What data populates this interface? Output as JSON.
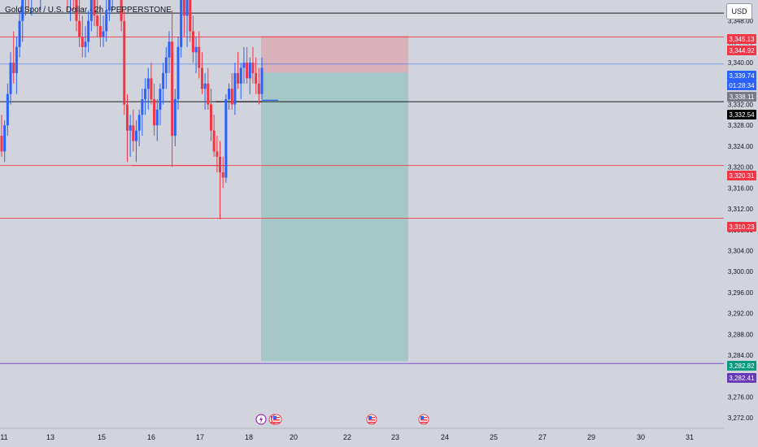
{
  "header": {
    "title": "Gold Spot / U.S. Dollar · 2h · PEPPERSTONE",
    "currency": "USD"
  },
  "chart_data": {
    "type": "candlestick",
    "y_axis": {
      "min": 3270,
      "max": 3352,
      "ticks": [
        3348.0,
        3344.0,
        3340.0,
        3336.0,
        3332.0,
        3328.0,
        3324.0,
        3320.0,
        3316.0,
        3312.0,
        3308.0,
        3304.0,
        3300.0,
        3296.0,
        3292.0,
        3288.0,
        3284.0,
        3280.0,
        3276.0,
        3272.0
      ]
    },
    "x_axis": {
      "labels": [
        "11",
        "13",
        "15",
        "16",
        "17",
        "18",
        "20",
        "22",
        "23",
        "24",
        "25",
        "27",
        "29",
        "30",
        "31"
      ]
    },
    "price_labels": [
      {
        "value": "3,345.13",
        "color": "#f23645"
      },
      {
        "value": "3,344.92",
        "color": "#f23645"
      },
      {
        "value": "3,339.74",
        "color": "#2962ff"
      },
      {
        "value": "01:28:34",
        "color": "#2962ff"
      },
      {
        "value": "3,338.11",
        "color": "#787b86"
      },
      {
        "value": "3,332.54",
        "color": "#000000"
      },
      {
        "value": "3,320.31",
        "color": "#f23645"
      },
      {
        "value": "3,310.23",
        "color": "#f23645"
      },
      {
        "value": "3,282.82",
        "color": "#089981"
      },
      {
        "value": "3,282.41",
        "color": "#673ab7"
      }
    ],
    "horizontal_lines": [
      {
        "value": 3349.5,
        "color": "#000000"
      },
      {
        "value": 3344.92,
        "color": "#f23645"
      },
      {
        "value": 3339.74,
        "color": "#2962ff"
      },
      {
        "value": 3332.54,
        "color": "#000000"
      },
      {
        "value": 3320.31,
        "color": "#f23645"
      },
      {
        "value": 3310.23,
        "color": "#f23645"
      },
      {
        "value": 3282.41,
        "color": "#673ab7"
      }
    ],
    "position": {
      "type": "short",
      "entry": 3338.11,
      "stop": 3345.13,
      "target": 3282.82
    },
    "candles": [
      {
        "o": 3326,
        "h": 3330,
        "l": 3322,
        "c": 3323
      },
      {
        "o": 3323,
        "h": 3329,
        "l": 3321,
        "c": 3328
      },
      {
        "o": 3328,
        "h": 3336,
        "l": 3326,
        "c": 3334
      },
      {
        "o": 3334,
        "h": 3342,
        "l": 3332,
        "c": 3340
      },
      {
        "o": 3340,
        "h": 3346,
        "l": 3336,
        "c": 3338
      },
      {
        "o": 3338,
        "h": 3345,
        "l": 3334,
        "c": 3343
      },
      {
        "o": 3343,
        "h": 3350,
        "l": 3341,
        "c": 3348
      },
      {
        "o": 3348,
        "h": 3354,
        "l": 3344,
        "c": 3352
      },
      {
        "o": 3352,
        "h": 3358,
        "l": 3349,
        "c": 3355
      },
      {
        "o": 3355,
        "h": 3359,
        "l": 3350,
        "c": 3353
      },
      {
        "o": 3353,
        "h": 3357,
        "l": 3349,
        "c": 3356
      },
      {
        "o": 3356,
        "h": 3360,
        "l": 3352,
        "c": 3357
      },
      {
        "o": 3357,
        "h": 3361,
        "l": 3352,
        "c": 3354
      },
      {
        "o": 3354,
        "h": 3358,
        "l": 3350,
        "c": 3357
      },
      {
        "o": 3357,
        "h": 3362,
        "l": 3353,
        "c": 3359
      },
      {
        "o": 3359,
        "h": 3363,
        "l": 3355,
        "c": 3358
      },
      {
        "o": 3358,
        "h": 3362,
        "l": 3354,
        "c": 3360
      },
      {
        "o": 3360,
        "h": 3363,
        "l": 3356,
        "c": 3357
      },
      {
        "o": 3357,
        "h": 3361,
        "l": 3353,
        "c": 3359
      },
      {
        "o": 3359,
        "h": 3362,
        "l": 3355,
        "c": 3356
      },
      {
        "o": 3356,
        "h": 3360,
        "l": 3352,
        "c": 3358
      },
      {
        "o": 3358,
        "h": 3361,
        "l": 3354,
        "c": 3355
      },
      {
        "o": 3355,
        "h": 3360,
        "l": 3350,
        "c": 3353
      },
      {
        "o": 3353,
        "h": 3357,
        "l": 3348,
        "c": 3355
      },
      {
        "o": 3355,
        "h": 3359,
        "l": 3350,
        "c": 3352
      },
      {
        "o": 3352,
        "h": 3356,
        "l": 3346,
        "c": 3348
      },
      {
        "o": 3348,
        "h": 3352,
        "l": 3343,
        "c": 3345
      },
      {
        "o": 3345,
        "h": 3349,
        "l": 3341,
        "c": 3343
      },
      {
        "o": 3343,
        "h": 3347,
        "l": 3341,
        "c": 3344
      },
      {
        "o": 3344,
        "h": 3350,
        "l": 3342,
        "c": 3348
      },
      {
        "o": 3348,
        "h": 3354,
        "l": 3346,
        "c": 3352
      },
      {
        "o": 3352,
        "h": 3356,
        "l": 3347,
        "c": 3349
      },
      {
        "o": 3349,
        "h": 3353,
        "l": 3345,
        "c": 3347
      },
      {
        "o": 3347,
        "h": 3351,
        "l": 3343,
        "c": 3345
      },
      {
        "o": 3345,
        "h": 3349,
        "l": 3343,
        "c": 3346
      },
      {
        "o": 3346,
        "h": 3352,
        "l": 3344,
        "c": 3350
      },
      {
        "o": 3350,
        "h": 3356,
        "l": 3348,
        "c": 3354
      },
      {
        "o": 3354,
        "h": 3358,
        "l": 3350,
        "c": 3356
      },
      {
        "o": 3356,
        "h": 3360,
        "l": 3352,
        "c": 3358
      },
      {
        "o": 3358,
        "h": 3362,
        "l": 3353,
        "c": 3355
      },
      {
        "o": 3355,
        "h": 3358,
        "l": 3346,
        "c": 3348
      },
      {
        "o": 3348,
        "h": 3350,
        "l": 3330,
        "c": 3332
      },
      {
        "o": 3332,
        "h": 3334,
        "l": 3321,
        "c": 3327
      },
      {
        "o": 3327,
        "h": 3330,
        "l": 3322,
        "c": 3328
      },
      {
        "o": 3328,
        "h": 3331,
        "l": 3323,
        "c": 3325
      },
      {
        "o": 3325,
        "h": 3329,
        "l": 3321,
        "c": 3327
      },
      {
        "o": 3327,
        "h": 3331,
        "l": 3324,
        "c": 3330
      },
      {
        "o": 3330,
        "h": 3335,
        "l": 3326,
        "c": 3333
      },
      {
        "o": 3333,
        "h": 3337,
        "l": 3330,
        "c": 3335
      },
      {
        "o": 3335,
        "h": 3339,
        "l": 3331,
        "c": 3337
      },
      {
        "o": 3337,
        "h": 3340,
        "l": 3332,
        "c": 3333
      },
      {
        "o": 3333,
        "h": 3336,
        "l": 3326,
        "c": 3328
      },
      {
        "o": 3328,
        "h": 3333,
        "l": 3325,
        "c": 3331
      },
      {
        "o": 3331,
        "h": 3336,
        "l": 3328,
        "c": 3335
      },
      {
        "o": 3335,
        "h": 3340,
        "l": 3332,
        "c": 3338
      },
      {
        "o": 3338,
        "h": 3343,
        "l": 3335,
        "c": 3341
      },
      {
        "o": 3341,
        "h": 3346,
        "l": 3338,
        "c": 3344
      },
      {
        "o": 3344,
        "h": 3350,
        "l": 3320,
        "c": 3326
      },
      {
        "o": 3326,
        "h": 3335,
        "l": 3324,
        "c": 3333
      },
      {
        "o": 3333,
        "h": 3345,
        "l": 3331,
        "c": 3343
      },
      {
        "o": 3343,
        "h": 3360,
        "l": 3341,
        "c": 3357
      },
      {
        "o": 3357,
        "h": 3361,
        "l": 3345,
        "c": 3349
      },
      {
        "o": 3349,
        "h": 3354,
        "l": 3343,
        "c": 3352
      },
      {
        "o": 3352,
        "h": 3355,
        "l": 3344,
        "c": 3346
      },
      {
        "o": 3346,
        "h": 3349,
        "l": 3340,
        "c": 3342
      },
      {
        "o": 3342,
        "h": 3345,
        "l": 3338,
        "c": 3343
      },
      {
        "o": 3343,
        "h": 3346,
        "l": 3337,
        "c": 3339
      },
      {
        "o": 3339,
        "h": 3342,
        "l": 3334,
        "c": 3335
      },
      {
        "o": 3335,
        "h": 3338,
        "l": 3331,
        "c": 3336
      },
      {
        "o": 3336,
        "h": 3339,
        "l": 3331,
        "c": 3332
      },
      {
        "o": 3332,
        "h": 3335,
        "l": 3325,
        "c": 3327
      },
      {
        "o": 3327,
        "h": 3330,
        "l": 3322,
        "c": 3323
      },
      {
        "o": 3323,
        "h": 3326,
        "l": 3319,
        "c": 3322
      },
      {
        "o": 3322,
        "h": 3325,
        "l": 3310,
        "c": 3319
      },
      {
        "o": 3319,
        "h": 3322,
        "l": 3316,
        "c": 3318
      },
      {
        "o": 3318,
        "h": 3334,
        "l": 3317,
        "c": 3333
      },
      {
        "o": 3333,
        "h": 3336,
        "l": 3331,
        "c": 3335
      },
      {
        "o": 3335,
        "h": 3338,
        "l": 3331,
        "c": 3332
      },
      {
        "o": 3332,
        "h": 3340,
        "l": 3330,
        "c": 3338
      },
      {
        "o": 3338,
        "h": 3342,
        "l": 3335,
        "c": 3336
      },
      {
        "o": 3336,
        "h": 3340,
        "l": 3333,
        "c": 3339
      },
      {
        "o": 3339,
        "h": 3343,
        "l": 3336,
        "c": 3340
      },
      {
        "o": 3340,
        "h": 3343,
        "l": 3336,
        "c": 3337
      },
      {
        "o": 3337,
        "h": 3341,
        "l": 3334,
        "c": 3340
      },
      {
        "o": 3340,
        "h": 3343,
        "l": 3336,
        "c": 3338
      },
      {
        "o": 3338,
        "h": 3341,
        "l": 3334,
        "c": 3336
      },
      {
        "o": 3336,
        "h": 3339,
        "l": 3332,
        "c": 3334
      },
      {
        "o": 3334,
        "h": 3341,
        "l": 3333,
        "c": 3339
      }
    ],
    "event_markers": [
      "flash",
      "us-flag",
      "us-flag",
      "us-flag",
      "us-flag"
    ]
  }
}
